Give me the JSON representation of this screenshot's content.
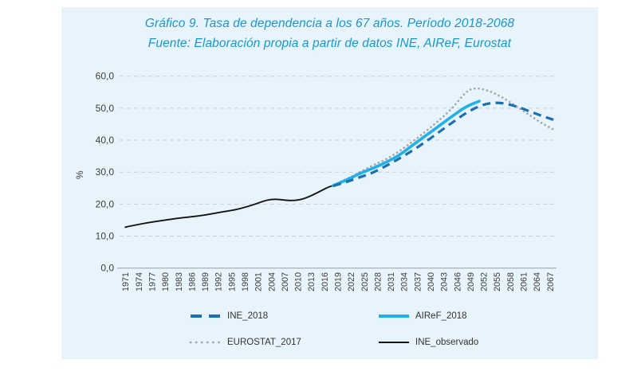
{
  "chart_data": {
    "type": "line",
    "title": "Gráfico 9. Tasa de dependencia a los 67 años. Período 2018-2068",
    "subtitle": "Fuente: Elaboración propia a partir de datos INE, AIReF, Eurostat",
    "xlabel": "",
    "ylabel": "%",
    "ylim": [
      0,
      60
    ],
    "xlim": [
      1969.7,
      2068.3
    ],
    "grid": "horizontal-dashed",
    "legend_position": "bottom-two-columns",
    "yticks": [
      {
        "value": 0,
        "label": "0,0"
      },
      {
        "value": 10,
        "label": "10,0"
      },
      {
        "value": 20,
        "label": "20,0"
      },
      {
        "value": 30,
        "label": "30,0"
      },
      {
        "value": 40,
        "label": "40,0"
      },
      {
        "value": 50,
        "label": "50,0"
      },
      {
        "value": 60,
        "label": "60,0"
      }
    ],
    "xticks": [
      {
        "value": 1971,
        "label": "1971"
      },
      {
        "value": 1974,
        "label": "1974"
      },
      {
        "value": 1977,
        "label": "1977"
      },
      {
        "value": 1980,
        "label": "1980"
      },
      {
        "value": 1983,
        "label": "1983"
      },
      {
        "value": 1986,
        "label": "1986"
      },
      {
        "value": 1989,
        "label": "1989"
      },
      {
        "value": 1992,
        "label": "1992"
      },
      {
        "value": 1995,
        "label": "1995"
      },
      {
        "value": 1998,
        "label": "1998"
      },
      {
        "value": 2001,
        "label": "2001"
      },
      {
        "value": 2004,
        "label": "2004"
      },
      {
        "value": 2007,
        "label": "2007"
      },
      {
        "value": 2010,
        "label": "2010"
      },
      {
        "value": 2013,
        "label": "2013"
      },
      {
        "value": 2016,
        "label": "2016"
      },
      {
        "value": 2019,
        "label": "2019"
      },
      {
        "value": 2022,
        "label": "2022"
      },
      {
        "value": 2025,
        "label": "2025"
      },
      {
        "value": 2028,
        "label": "2028"
      },
      {
        "value": 2031,
        "label": "2031"
      },
      {
        "value": 2034,
        "label": "2034"
      },
      {
        "value": 2037,
        "label": "2037"
      },
      {
        "value": 2040,
        "label": "2040"
      },
      {
        "value": 2043,
        "label": "2043"
      },
      {
        "value": 2046,
        "label": "2046"
      },
      {
        "value": 2049,
        "label": "2049"
      },
      {
        "value": 2052,
        "label": "2052"
      },
      {
        "value": 2055,
        "label": "2055"
      },
      {
        "value": 2058,
        "label": "2058"
      },
      {
        "value": 2061,
        "label": "2061"
      },
      {
        "value": 2064,
        "label": "2064"
      },
      {
        "value": 2067,
        "label": "2067"
      }
    ],
    "series": [
      {
        "name": "INE_2018",
        "style": "dashed",
        "color": "#1c6fb4",
        "width": 3.2,
        "x": [
          2018,
          2021,
          2024,
          2027,
          2030,
          2033,
          2036,
          2039,
          2042,
          2045,
          2048,
          2051,
          2054,
          2057,
          2060,
          2063,
          2066,
          2068
        ],
        "y": [
          25.7,
          26.9,
          28.4,
          29.8,
          32.0,
          34.3,
          36.8,
          39.6,
          42.6,
          45.6,
          48.5,
          50.7,
          51.8,
          51.5,
          50.3,
          48.7,
          47.2,
          46.3
        ]
      },
      {
        "name": "AIReF_2018",
        "style": "solid",
        "color": "#22b0e8",
        "width": 3.6,
        "x": [
          2018,
          2021,
          2024,
          2027,
          2030,
          2033,
          2036,
          2039,
          2042,
          2045,
          2048,
          2051
        ],
        "y": [
          25.8,
          27.5,
          29.6,
          31.2,
          33.1,
          35.3,
          38.5,
          41.5,
          44.5,
          47.6,
          50.5,
          52.2
        ]
      },
      {
        "name": "EUROSTAT_2017",
        "style": "dotted",
        "color": "#a8a8a8",
        "width": 2.7,
        "x": [
          2018,
          2021,
          2024,
          2027,
          2030,
          2033,
          2036,
          2039,
          2042,
          2045,
          2048,
          2050,
          2053,
          2056,
          2059,
          2062,
          2065,
          2068
        ],
        "y": [
          25.9,
          27.8,
          30.0,
          32.2,
          34.0,
          36.6,
          39.6,
          42.8,
          46.3,
          50.0,
          55.2,
          56.4,
          55.6,
          53.6,
          51.0,
          48.2,
          45.4,
          43.2
        ]
      },
      {
        "name": "INE_observado",
        "style": "solid",
        "color": "#141414",
        "width": 1.9,
        "x": [
          1971,
          1973,
          1975,
          1977,
          1979,
          1981,
          1983,
          1985,
          1987,
          1989,
          1991,
          1993,
          1995,
          1997,
          1999,
          2001,
          2003,
          2005,
          2007,
          2009,
          2011,
          2013,
          2015,
          2017,
          2018
        ],
        "y": [
          12.8,
          13.4,
          13.9,
          14.4,
          14.8,
          15.2,
          15.6,
          15.9,
          16.2,
          16.6,
          17.1,
          17.6,
          18.0,
          18.6,
          19.4,
          20.3,
          21.3,
          21.6,
          21.2,
          21.1,
          21.5,
          22.6,
          24.0,
          25.4,
          25.8
        ]
      }
    ],
    "colors": {
      "title_text": "#1697d4",
      "panel_background": "#e8f4fb",
      "gridline": "#c9ced3",
      "axis_line": "#9aa0a4",
      "tick_text": "#3d3d3d"
    }
  }
}
